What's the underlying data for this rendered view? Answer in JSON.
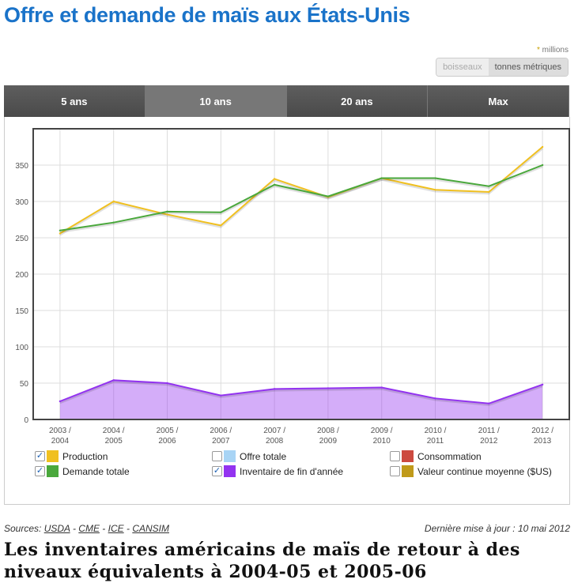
{
  "title": "Offre et demande de maïs aux États-Unis",
  "units_note": "millions",
  "unit_toggle": [
    "boisseaux",
    "tonnes métriques"
  ],
  "tabs": [
    "5 ans",
    "10 ans",
    "20 ans",
    "Max"
  ],
  "active_tab": "10 ans",
  "chart_data": {
    "type": "line",
    "categories": [
      "2003 / 2004",
      "2004 / 2005",
      "2005 / 2006",
      "2006 / 2007",
      "2007 / 2008",
      "2008 / 2009",
      "2009 / 2010",
      "2010 / 2011",
      "2011 / 2012",
      "2012 / 2013"
    ],
    "ylim": [
      0,
      400
    ],
    "yticks": [
      0,
      50,
      100,
      150,
      200,
      250,
      300,
      350
    ],
    "grid": true,
    "series": [
      {
        "name": "Production",
        "color": "#f0c020",
        "values": [
          256,
          300,
          282,
          267,
          331,
          306,
          332,
          316,
          313,
          375
        ],
        "checked": true
      },
      {
        "name": "Demande totale",
        "color": "#4aa83c",
        "values": [
          260,
          271,
          286,
          285,
          323,
          307,
          332,
          332,
          321,
          350
        ],
        "checked": true
      },
      {
        "name": "Inventaire de fin d'année",
        "color": "#9333f0",
        "values": [
          25,
          54,
          50,
          33,
          42,
          43,
          44,
          29,
          22,
          48
        ],
        "checked": true,
        "area": true
      }
    ]
  },
  "legend": [
    {
      "label": "Production",
      "color": "#f0c020",
      "checked": true
    },
    {
      "label": "Offre totale",
      "color": "#a8d4f5",
      "checked": false
    },
    {
      "label": "Consommation",
      "color": "#cc4a40",
      "checked": false
    },
    {
      "label": "Demande totale",
      "color": "#4aa83c",
      "checked": true
    },
    {
      "label": "Inventaire de fin d'année",
      "color": "#9333f0",
      "checked": true
    },
    {
      "label": "Valeur continue moyenne ($US)",
      "color": "#c09a1a",
      "checked": false
    }
  ],
  "sources": {
    "label": "Sources:",
    "links": [
      "USDA",
      "CME",
      "ICE",
      "CANSIM"
    ]
  },
  "updated": "Dernière mise à jour : 10 mai 2012",
  "headline": "Les inventaires américains de maïs de retour à des niveaux équivalents à 2004-05 et 2005-06"
}
